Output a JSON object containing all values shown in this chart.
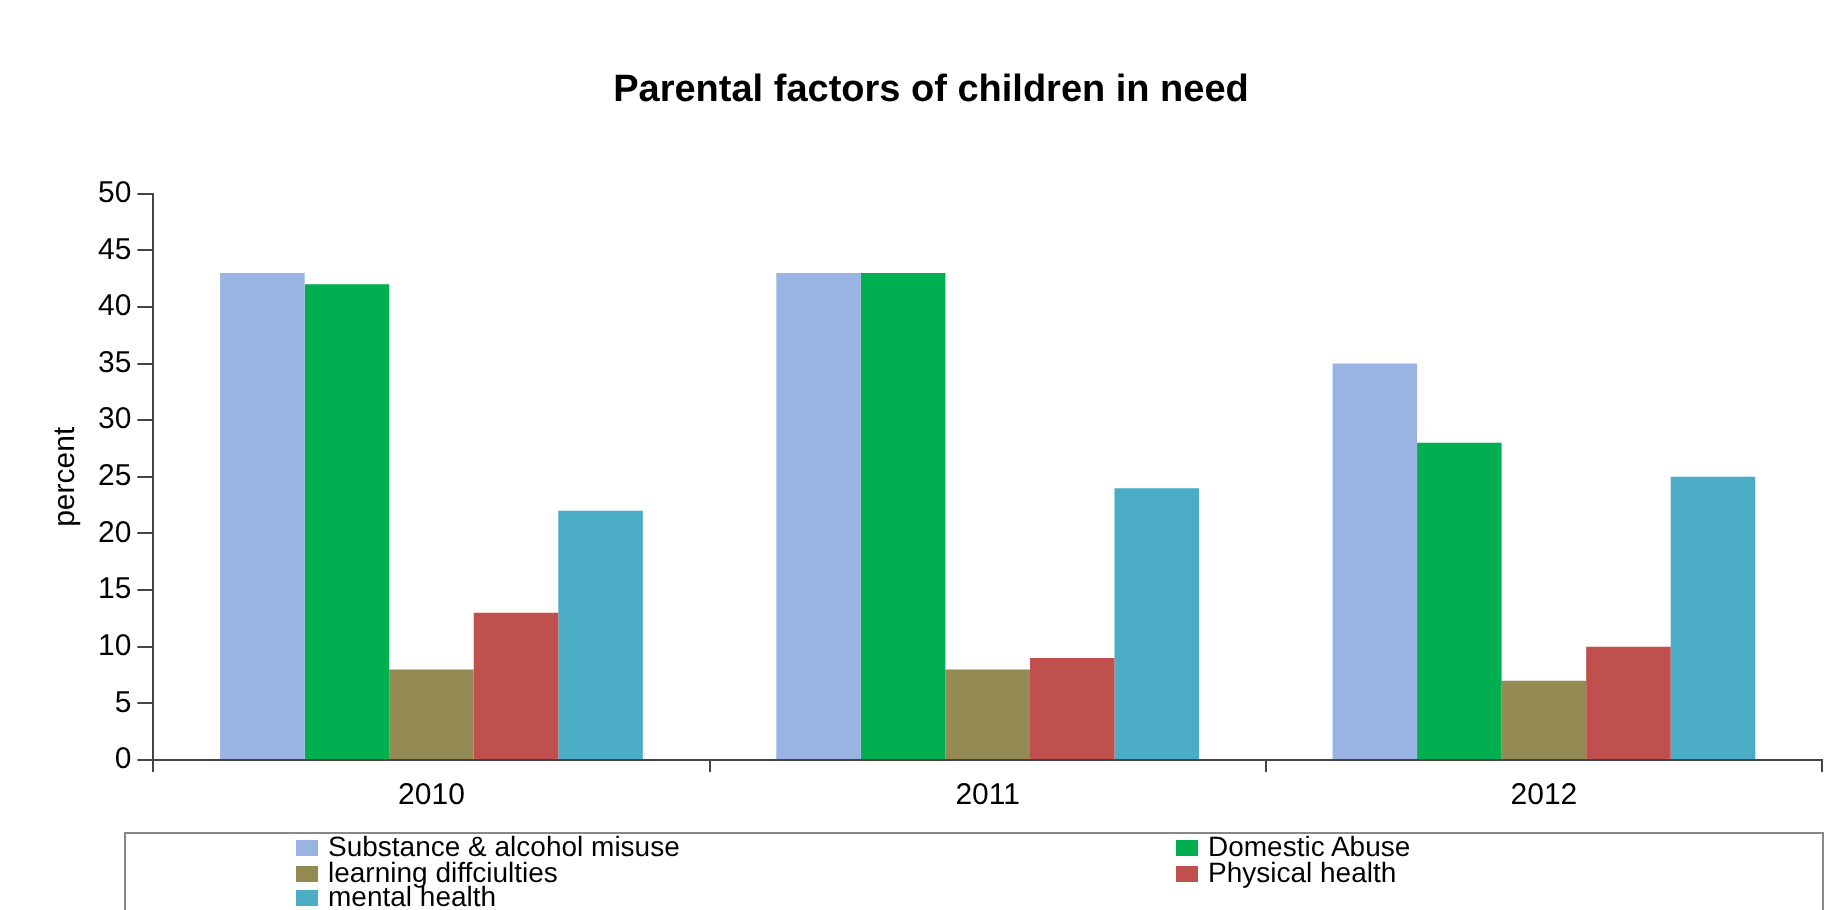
{
  "chart_data": {
    "type": "bar",
    "title": "Parental factors of children in need",
    "ylabel": "percent",
    "categories": [
      "2010",
      "2011",
      "2012"
    ],
    "series": [
      {
        "name": "Substance & alcohol misuse",
        "color": "#99b4e2",
        "values": [
          43,
          43,
          35
        ]
      },
      {
        "name": "Domestic Abuse",
        "color": "#00b050",
        "values": [
          42,
          43,
          28
        ]
      },
      {
        "name": "learning diffciulties",
        "color": "#948a54",
        "values": [
          8,
          8,
          7
        ]
      },
      {
        "name": "Physical health",
        "color": "#c0504d",
        "values": [
          13,
          9,
          10
        ]
      },
      {
        "name": "mental health",
        "color": "#4bacc6",
        "values": [
          22,
          24,
          25
        ]
      }
    ],
    "ylim": [
      0,
      50
    ],
    "yticks": [
      0,
      5,
      10,
      15,
      20,
      25,
      30,
      35,
      40,
      45,
      50
    ],
    "grid": false,
    "legend": "bottom"
  }
}
